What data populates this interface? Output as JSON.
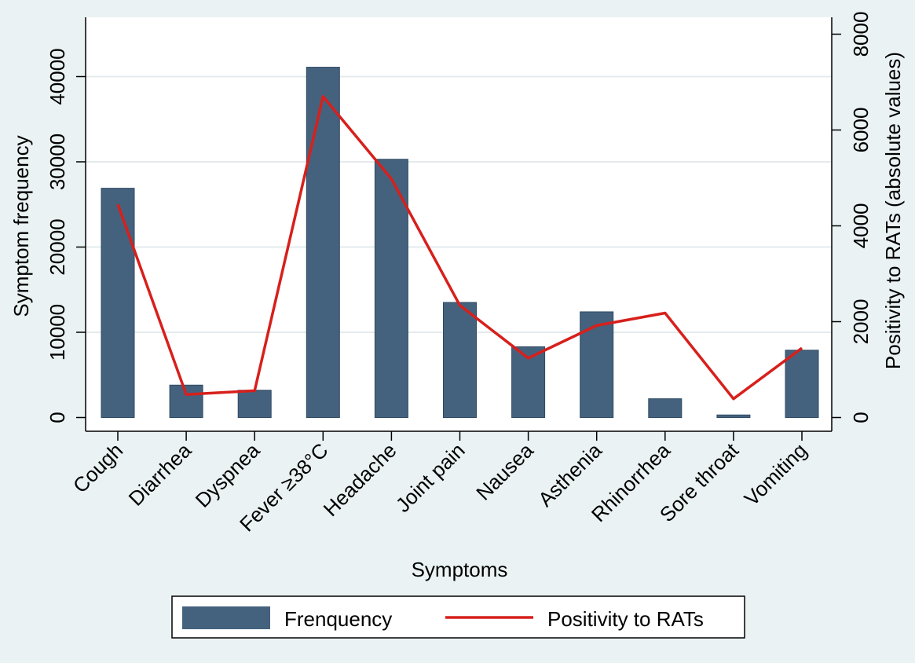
{
  "chart_data": {
    "type": "bar",
    "categories": [
      "Cough",
      "Diarrhea",
      "Dyspnea",
      "Fever ≥38°C",
      "Headache",
      "Joint pain",
      "Nausea",
      "Asthenia",
      "Rhinorrhea",
      "Sore throat",
      "Vomiting"
    ],
    "series": [
      {
        "name": "Frenquency",
        "type": "bar",
        "axis": "left",
        "color": "#44627e",
        "values": [
          26900,
          3800,
          3200,
          41100,
          30300,
          13500,
          8300,
          12400,
          2200,
          300,
          7900
        ]
      },
      {
        "name": "Positivity to RATs",
        "type": "line",
        "axis": "right",
        "color": "#d7201c",
        "values": [
          4450,
          480,
          560,
          6700,
          4980,
          2340,
          1240,
          1920,
          2180,
          390,
          1450
        ]
      }
    ],
    "xlabel": "Symptoms",
    "ylabel": "Symptom frequency",
    "y2label": "Positivity to RATs (absolute values)",
    "ylim": [
      0,
      47000
    ],
    "y2lim": [
      0,
      8330
    ],
    "yticks": [
      0,
      10000,
      20000,
      30000,
      40000
    ],
    "y2ticks": [
      0,
      2000,
      4000,
      6000,
      8000
    ],
    "grid": true,
    "legend_position": "bottom"
  }
}
